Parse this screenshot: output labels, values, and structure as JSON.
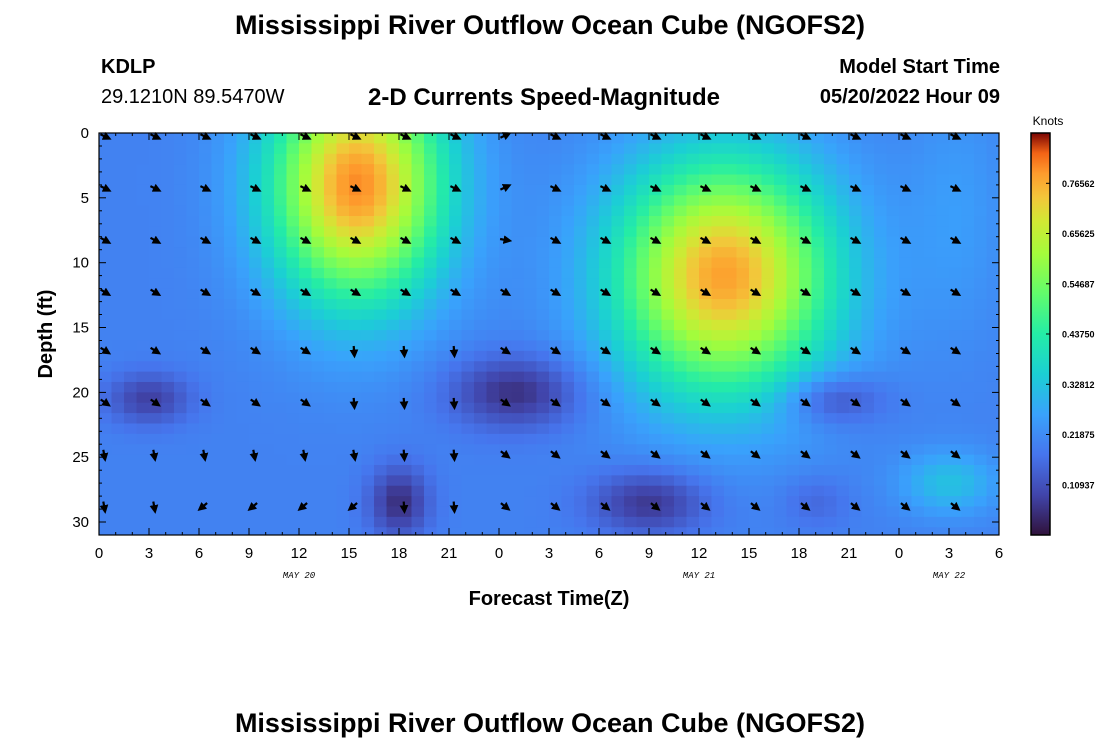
{
  "header": {
    "title": "Mississippi River Outflow Ocean Cube (NGOFS2)",
    "station_id": "KDLP",
    "station_coords": "29.1210N  89.5470W",
    "plot_title": "2-D Currents Speed-Magnitude",
    "model_start_label": "Model Start Time",
    "model_start_value": "05/20/2022 Hour 09"
  },
  "footer": {
    "title": "Mississippi River Outflow Ocean Cube (NGOFS2)"
  },
  "chart_data": {
    "type": "heatmap",
    "title": "2-D Currents Speed-Magnitude",
    "xlabel": "Forecast Time(Z)",
    "ylabel": "Depth (ft)",
    "x_ticks": [
      "0",
      "3",
      "6",
      "9",
      "12",
      "15",
      "18",
      "21",
      "0",
      "3",
      "6",
      "9",
      "12",
      "15",
      "18",
      "21",
      "0",
      "3",
      "6"
    ],
    "date_labels": [
      {
        "label": "MAY 20",
        "hour": 12
      },
      {
        "label": "MAY 21",
        "hour": 36
      },
      {
        "label": "MAY 22",
        "hour": 51
      }
    ],
    "xlim_hours": [
      0,
      54
    ],
    "y_ticks": [
      0,
      5,
      10,
      15,
      20,
      25,
      30
    ],
    "ylim": [
      0,
      31
    ],
    "colorbar": {
      "title": "Knots",
      "range": [
        0,
        0.875
      ],
      "tick_labels": [
        "0.76562",
        "0.65625",
        "0.54687",
        "0.43750",
        "0.32812",
        "0.21875",
        "0.10937"
      ],
      "tick_values": [
        0.765625,
        0.65625,
        0.546875,
        0.4375,
        0.328125,
        0.21875,
        0.109375
      ]
    },
    "vector_columns_hours": [
      0,
      3,
      6,
      9,
      12,
      15,
      18,
      21,
      24,
      27,
      30,
      33,
      36,
      39,
      42,
      45,
      48,
      51
    ],
    "vector_rows_depth": [
      0,
      4,
      8,
      12,
      16.5,
      20.5,
      24.5,
      28.5
    ],
    "speed_pattern": "Two strong ebb cores (about 0.75-0.85 kn) centred near hour 16 at 4 ft and hour 37 at 13 ft; slow cells (about 0.05-0.15 kn) near hours 2, 25 and 44 at 20 ft and near hours 18 and 33 at 28 ft; weak flow (about 0.1-0.25 kn) elsewhere."
  }
}
